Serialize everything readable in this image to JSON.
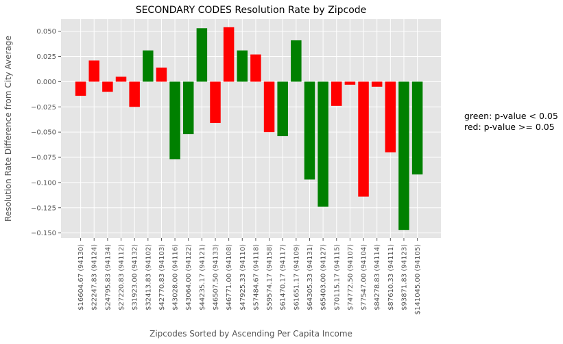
{
  "chart_data": {
    "type": "bar",
    "title": "SECONDARY CODES Resolution Rate by Zipcode",
    "xlabel": "Zipcodes Sorted by Ascending Per Capita Income",
    "ylabel": "Resolution Rate Difference from City Average",
    "ylim": [
      -0.155,
      0.062
    ],
    "yticks": [
      0.05,
      0.025,
      0.0,
      -0.025,
      -0.05,
      -0.075,
      -0.1,
      -0.125,
      -0.15
    ],
    "ytick_labels": [
      "0.050",
      "0.025",
      "0.000",
      "−0.025",
      "−0.050",
      "−0.075",
      "−0.100",
      "−0.125",
      "−0.150"
    ],
    "grid": true,
    "categories": [
      "$16604.67 (94130)",
      "$22247.83 (94124)",
      "$24795.83 (94134)",
      "$27220.83 (94112)",
      "$31923.00 (94132)",
      "$32413.83 (94102)",
      "$42770.83 (94103)",
      "$43028.00 (94116)",
      "$43064.00 (94122)",
      "$44235.17 (94121)",
      "$46507.50 (94133)",
      "$46771.00 (94108)",
      "$47925.33 (94110)",
      "$57484.67 (94118)",
      "$59574.17 (94158)",
      "$61470.17 (94117)",
      "$61651.17 (94109)",
      "$64305.33 (94131)",
      "$65403.00 (94127)",
      "$70115.17 (94115)",
      "$74772.50 (94107)",
      "$77547.00 (94104)",
      "$84278.83 (94114)",
      "$87610.33 (94111)",
      "$93871.83 (94123)",
      "$141045.00 (94105)"
    ],
    "values": [
      -0.014,
      0.021,
      -0.01,
      0.005,
      -0.025,
      0.031,
      0.014,
      -0.077,
      -0.052,
      0.053,
      -0.041,
      0.054,
      0.031,
      0.027,
      -0.05,
      -0.054,
      0.041,
      -0.097,
      -0.124,
      -0.024,
      -0.003,
      -0.114,
      -0.005,
      -0.07,
      -0.147,
      -0.092
    ],
    "significant": [
      false,
      false,
      false,
      false,
      false,
      true,
      false,
      true,
      true,
      true,
      false,
      false,
      true,
      false,
      false,
      true,
      true,
      true,
      true,
      false,
      false,
      false,
      false,
      false,
      true,
      true
    ],
    "colors": {
      "significant": "#008000",
      "not_significant": "#ff0000",
      "plot_bg": "#e5e5e5",
      "grid": "#ffffff"
    },
    "legend": {
      "lines": [
        "green: p-value < 0.05",
        "red: p-value >= 0.05"
      ],
      "placement": "right"
    }
  }
}
